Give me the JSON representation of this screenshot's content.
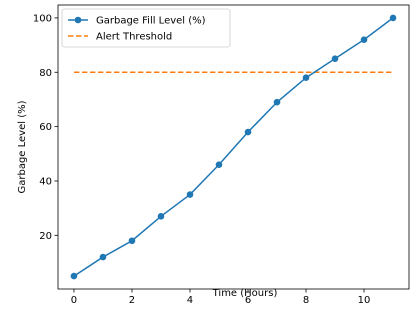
{
  "chart_data": {
    "type": "line",
    "title": "",
    "xlabel": "Time (Hours)",
    "ylabel": "Garbage Level (%)",
    "xlim": [
      -0.55,
      11.55
    ],
    "ylim": [
      0.25,
      104.75
    ],
    "xticks": [
      0,
      2,
      4,
      6,
      8,
      10
    ],
    "yticks": [
      20,
      40,
      60,
      80,
      100
    ],
    "grid": false,
    "legend_position": "top-left",
    "series": [
      {
        "name": "Garbage Fill Level (%)",
        "color": "#1f77b4",
        "style": "solid-with-markers",
        "x": [
          0,
          1,
          2,
          3,
          4,
          5,
          6,
          7,
          8,
          9,
          10,
          11
        ],
        "y": [
          5,
          12,
          18,
          27,
          35,
          46,
          58,
          69,
          78,
          85,
          92,
          100
        ]
      },
      {
        "name": "Alert Threshold",
        "color": "#ff7f0e",
        "style": "dashed",
        "y_constant": 80
      }
    ]
  }
}
